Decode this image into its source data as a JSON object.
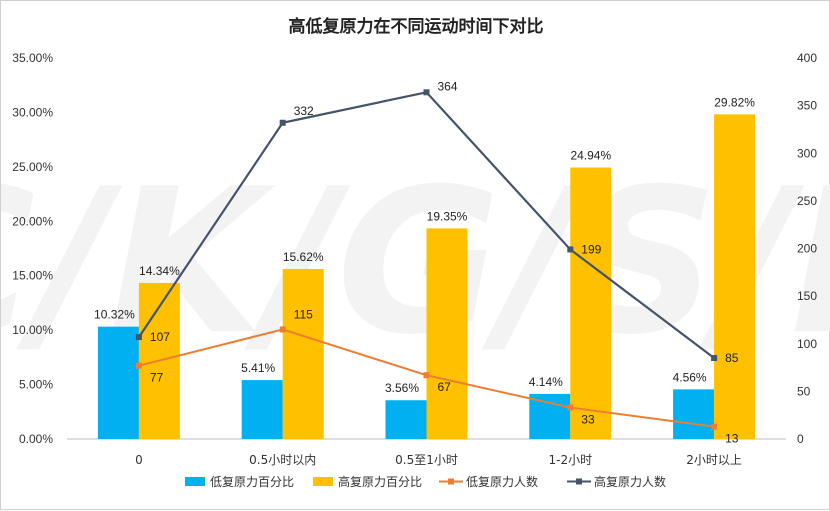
{
  "watermark": "C/K/G/S/B",
  "chart_data": {
    "type": "bar",
    "title": "高低复原力在不同运动时间下对比",
    "categories": [
      "0",
      "0.5小时以内",
      "0.5至1小时",
      "1-2小时",
      "2小时以上"
    ],
    "y_left": {
      "min": 0,
      "max": 35,
      "step": 5,
      "tick_labels": [
        "0.00%",
        "5.00%",
        "10.00%",
        "15.00%",
        "20.00%",
        "25.00%",
        "30.00%",
        "35.00%"
      ]
    },
    "y_right": {
      "min": 0,
      "max": 400,
      "step": 50,
      "tick_labels": [
        "0",
        "50",
        "100",
        "150",
        "200",
        "250",
        "300",
        "350",
        "400"
      ]
    },
    "grid": false,
    "legend_position": "bottom",
    "series": [
      {
        "name": "低复原力百分比",
        "kind": "bar",
        "axis": "left",
        "color": "#00B0F0",
        "values": [
          10.32,
          5.41,
          3.56,
          4.14,
          4.56
        ],
        "labels": [
          "10.32%",
          "5.41%",
          "3.56%",
          "4.14%",
          "4.56%"
        ]
      },
      {
        "name": "高复原力百分比",
        "kind": "bar",
        "axis": "left",
        "color": "#FFC000",
        "values": [
          14.34,
          15.62,
          19.35,
          24.94,
          29.82
        ],
        "labels": [
          "14.34%",
          "15.62%",
          "19.35%",
          "24.94%",
          "29.82%"
        ]
      },
      {
        "name": "低复原力人数",
        "kind": "line",
        "axis": "right",
        "color": "#ED7D31",
        "values": [
          77,
          115,
          67,
          33,
          13
        ],
        "labels": [
          "77",
          "115",
          "67",
          "33",
          "13"
        ]
      },
      {
        "name": "高复原力人数",
        "kind": "line",
        "axis": "right",
        "color": "#44546A",
        "values": [
          107,
          332,
          364,
          199,
          85
        ],
        "labels": [
          "107",
          "332",
          "364",
          "199",
          "85"
        ]
      }
    ]
  }
}
